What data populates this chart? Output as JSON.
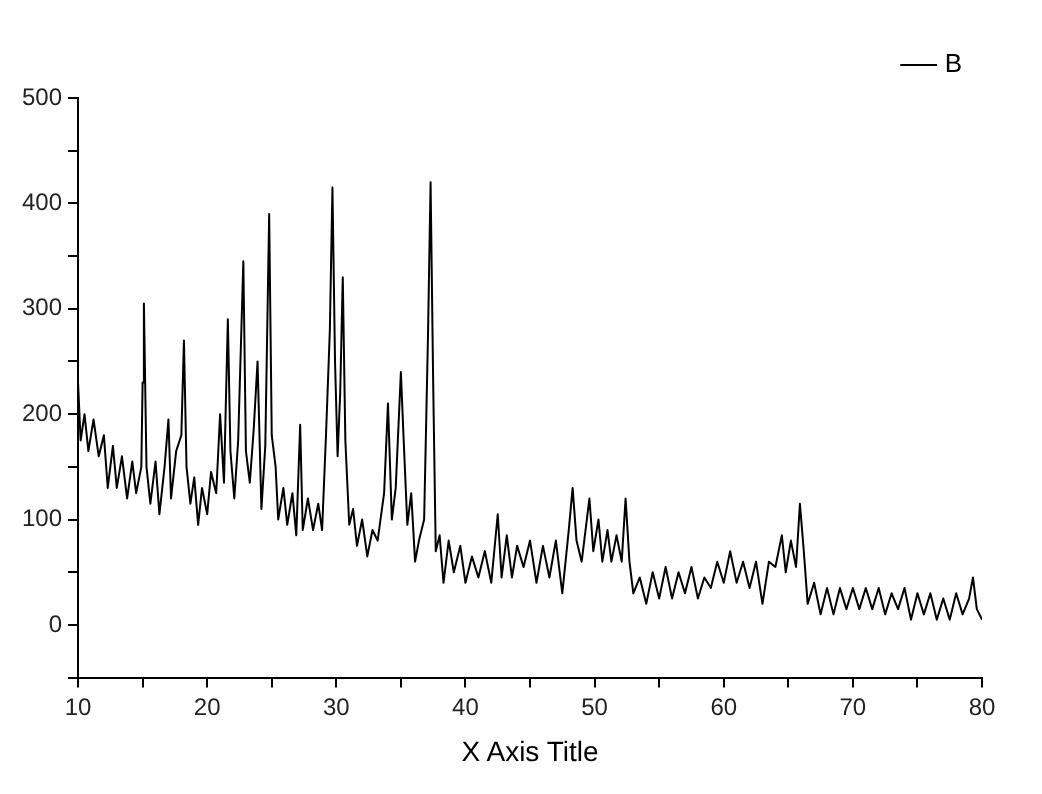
{
  "chart_data": {
    "type": "line",
    "xlabel": "X Axis Title",
    "legend": "top right",
    "grid": false,
    "marker": "none",
    "line_style": "solid",
    "xlim": [
      10,
      80
    ],
    "ylim": [
      -50,
      500
    ],
    "xticks": [
      10,
      {
        "value": 15,
        "label": null
      },
      20,
      {
        "value": 25,
        "label": null
      },
      30,
      {
        "value": 35,
        "label": null
      },
      40,
      {
        "value": 45,
        "label": null
      },
      50,
      {
        "value": 55,
        "label": null
      },
      60,
      {
        "value": 65,
        "label": null
      },
      70,
      {
        "value": 75,
        "label": null
      },
      80
    ],
    "yticks": [
      {
        "value": -50,
        "label": null
      },
      0,
      {
        "value": 50,
        "label": null
      },
      100,
      {
        "value": 150,
        "label": null
      },
      200,
      {
        "value": 250,
        "label": null
      },
      300,
      {
        "value": 350,
        "label": null
      },
      400,
      {
        "value": 450,
        "label": null
      },
      500
    ],
    "series": [
      {
        "name": "B",
        "color": "#000000",
        "x": [
          10.0,
          10.2,
          10.5,
          10.8,
          11.2,
          11.6,
          12.0,
          12.3,
          12.7,
          13.0,
          13.4,
          13.8,
          14.2,
          14.5,
          14.9,
          15.0,
          15.1,
          15.3,
          15.6,
          16.0,
          16.3,
          16.7,
          17.0,
          17.2,
          17.6,
          18.0,
          18.2,
          18.4,
          18.7,
          19.0,
          19.3,
          19.6,
          20.0,
          20.3,
          20.7,
          21.0,
          21.3,
          21.6,
          21.8,
          22.1,
          22.4,
          22.8,
          23.0,
          23.3,
          23.6,
          23.9,
          24.2,
          24.5,
          24.8,
          25.0,
          25.3,
          25.5,
          25.9,
          26.2,
          26.6,
          26.9,
          27.2,
          27.4,
          27.8,
          28.2,
          28.6,
          28.9,
          29.2,
          29.5,
          29.7,
          29.9,
          30.1,
          30.3,
          30.5,
          30.7,
          31.0,
          31.3,
          31.6,
          32.0,
          32.4,
          32.8,
          33.2,
          33.7,
          34.0,
          34.3,
          34.6,
          35.0,
          35.2,
          35.5,
          35.8,
          36.1,
          36.4,
          36.8,
          37.1,
          37.3,
          37.5,
          37.7,
          38.0,
          38.3,
          38.7,
          39.1,
          39.6,
          40.0,
          40.5,
          41.0,
          41.5,
          42.0,
          42.5,
          42.8,
          43.2,
          43.6,
          44.0,
          44.5,
          45.0,
          45.5,
          46.0,
          46.5,
          47.0,
          47.5,
          48.0,
          48.3,
          48.6,
          49.0,
          49.3,
          49.6,
          49.9,
          50.3,
          50.6,
          51.0,
          51.3,
          51.7,
          52.1,
          52.4,
          52.7,
          53.0,
          53.5,
          54.0,
          54.5,
          55.0,
          55.5,
          56.0,
          56.5,
          57.0,
          57.5,
          58.0,
          58.5,
          59.0,
          59.5,
          60.0,
          60.5,
          61.0,
          61.5,
          62.0,
          62.5,
          63.0,
          63.5,
          64.0,
          64.5,
          64.8,
          65.2,
          65.6,
          65.9,
          66.2,
          66.5,
          67.0,
          67.5,
          68.0,
          68.5,
          69.0,
          69.5,
          70.0,
          70.5,
          71.0,
          71.5,
          72.0,
          72.5,
          73.0,
          73.5,
          74.0,
          74.5,
          75.0,
          75.5,
          76.0,
          76.5,
          77.0,
          77.5,
          78.0,
          78.5,
          79.0,
          79.3,
          79.6,
          80.0
        ],
        "values": [
          230,
          175,
          200,
          165,
          195,
          160,
          180,
          130,
          170,
          130,
          160,
          120,
          155,
          125,
          150,
          230,
          305,
          150,
          115,
          155,
          105,
          150,
          195,
          120,
          165,
          180,
          270,
          150,
          115,
          140,
          95,
          130,
          105,
          145,
          125,
          200,
          135,
          290,
          165,
          120,
          175,
          345,
          165,
          135,
          185,
          250,
          110,
          170,
          390,
          180,
          150,
          100,
          130,
          95,
          125,
          85,
          190,
          90,
          120,
          90,
          115,
          90,
          180,
          280,
          415,
          250,
          160,
          220,
          330,
          175,
          95,
          110,
          75,
          100,
          65,
          90,
          80,
          125,
          210,
          100,
          130,
          240,
          180,
          95,
          125,
          60,
          80,
          100,
          275,
          420,
          230,
          70,
          85,
          40,
          80,
          50,
          75,
          40,
          65,
          45,
          70,
          40,
          105,
          45,
          85,
          45,
          75,
          55,
          80,
          40,
          75,
          45,
          80,
          30,
          90,
          130,
          80,
          60,
          90,
          120,
          70,
          100,
          60,
          90,
          60,
          85,
          60,
          120,
          60,
          30,
          45,
          20,
          50,
          25,
          55,
          25,
          50,
          30,
          55,
          25,
          45,
          35,
          60,
          40,
          70,
          40,
          60,
          35,
          60,
          20,
          60,
          55,
          85,
          50,
          80,
          55,
          115,
          70,
          20,
          40,
          10,
          35,
          10,
          35,
          15,
          35,
          15,
          35,
          15,
          35,
          10,
          30,
          15,
          35,
          5,
          30,
          10,
          30,
          5,
          25,
          5,
          30,
          10,
          25,
          45,
          15,
          5
        ]
      }
    ]
  }
}
